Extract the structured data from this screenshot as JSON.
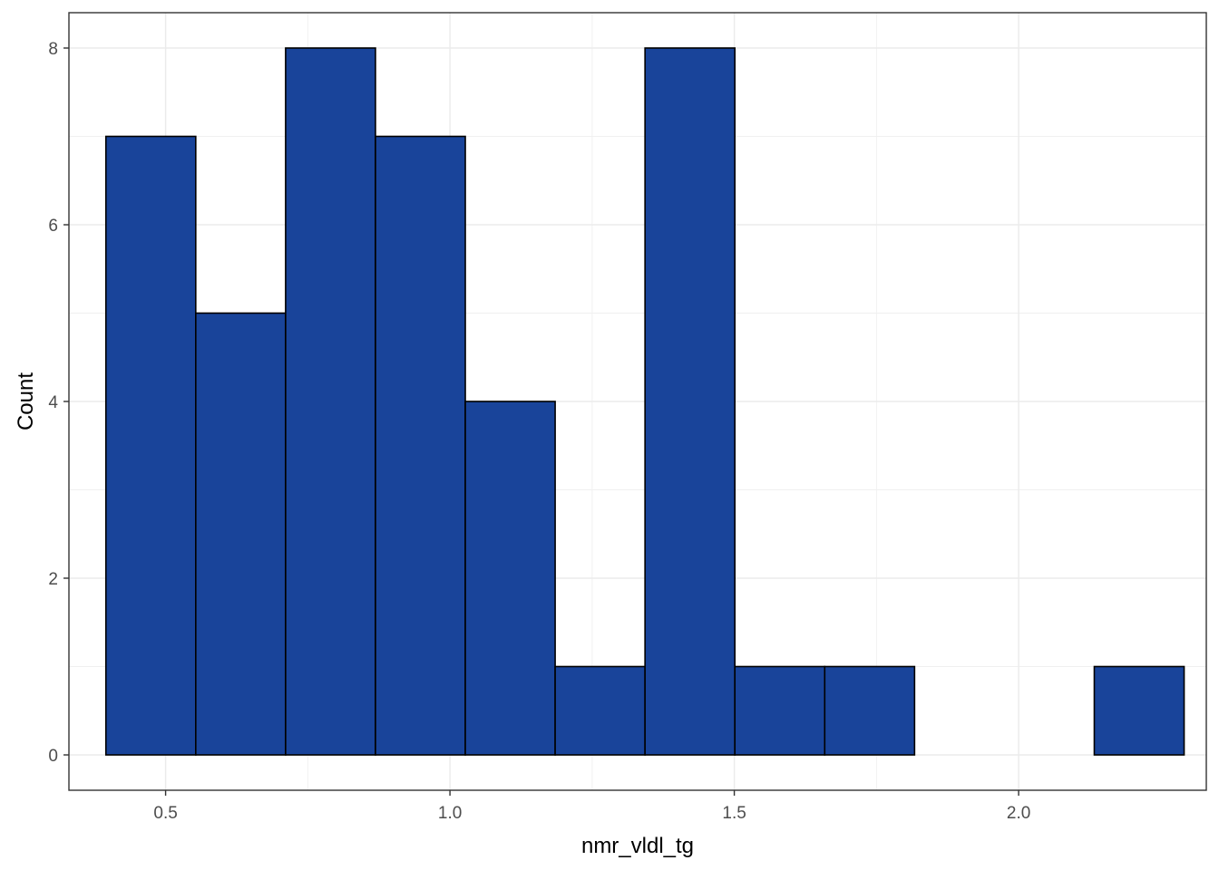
{
  "chart_data": {
    "type": "bar",
    "xlabel": "nmr_vldl_tg",
    "ylabel": "Count",
    "xlim": [
      0.33,
      2.33
    ],
    "ylim": [
      -0.4,
      8.4
    ],
    "x_ticks": [
      0.5,
      1.0,
      1.5,
      2.0
    ],
    "x_tick_labels": [
      "0.5",
      "1.0",
      "1.5",
      "2.0"
    ],
    "y_ticks": [
      0,
      2,
      4,
      6,
      8
    ],
    "y_tick_labels": [
      "0",
      "2",
      "4",
      "6",
      "8"
    ],
    "grid": true,
    "bar_fill": "#19449a",
    "bar_stroke": "#000000",
    "bins": [
      {
        "x0": 0.395,
        "x1": 0.553,
        "count": 7
      },
      {
        "x0": 0.553,
        "x1": 0.711,
        "count": 5
      },
      {
        "x0": 0.711,
        "x1": 0.869,
        "count": 8
      },
      {
        "x0": 0.869,
        "x1": 1.027,
        "count": 7
      },
      {
        "x0": 1.027,
        "x1": 1.185,
        "count": 4
      },
      {
        "x0": 1.185,
        "x1": 1.343,
        "count": 1
      },
      {
        "x0": 1.343,
        "x1": 1.501,
        "count": 8
      },
      {
        "x0": 1.501,
        "x1": 1.659,
        "count": 1
      },
      {
        "x0": 1.659,
        "x1": 1.817,
        "count": 1
      },
      {
        "x0": 1.817,
        "x1": 1.975,
        "count": 0
      },
      {
        "x0": 1.975,
        "x1": 2.133,
        "count": 0
      },
      {
        "x0": 2.133,
        "x1": 2.291,
        "count": 1
      }
    ]
  }
}
